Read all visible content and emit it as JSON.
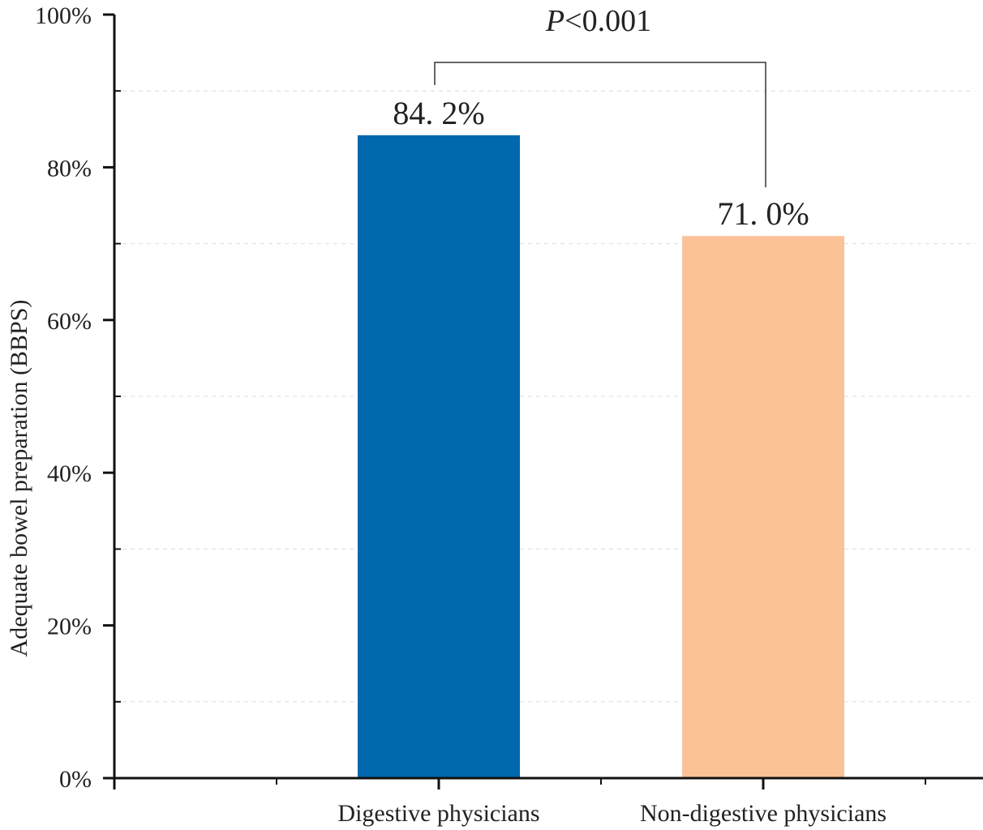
{
  "chart_data": {
    "type": "bar",
    "title": "",
    "xlabel": "",
    "ylabel": "Adequate bowel preparation (BBPS)",
    "ylim": [
      0,
      100
    ],
    "y_ticks": [
      0,
      20,
      40,
      60,
      80,
      100
    ],
    "y_tick_labels": [
      "0%",
      "20%",
      "40%",
      "60%",
      "80%",
      "100%"
    ],
    "grid": "dashed horizontal",
    "categories": [
      "Digestive physicians",
      "Non-digestive physicians"
    ],
    "values": [
      84.2,
      71.0
    ],
    "data_labels": [
      "84. 2%",
      "71. 0%"
    ],
    "colors": [
      "#0068AD",
      "#FCC297"
    ],
    "annotation": {
      "p_symbol": "P",
      "text": "<0.001",
      "compares": [
        "Digestive physicians",
        "Non-digestive physicians"
      ]
    }
  }
}
